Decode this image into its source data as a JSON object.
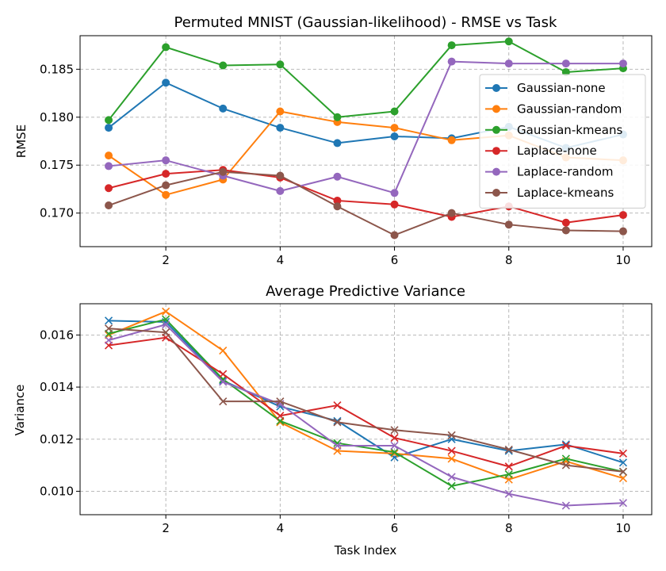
{
  "chart_data": [
    {
      "type": "line",
      "title": "Permuted MNIST (Gaussian-likelihood) - RMSE vs Task",
      "xlabel": "",
      "ylabel": "RMSE",
      "x": [
        1,
        2,
        3,
        4,
        5,
        6,
        7,
        8,
        9,
        10
      ],
      "xlim": [
        0.5,
        10.5
      ],
      "ylim": [
        0.1665,
        0.1885
      ],
      "xticks": [
        2,
        4,
        6,
        8,
        10
      ],
      "xtick_labels": [
        "2",
        "4",
        "6",
        "8",
        "10"
      ],
      "yticks": [
        0.17,
        0.175,
        0.18,
        0.185
      ],
      "ytick_labels": [
        "0.170",
        "0.175",
        "0.180",
        "0.185"
      ],
      "grid": true,
      "marker": "circle",
      "legend_position": "right",
      "series": [
        {
          "name": "Gaussian-none",
          "color": "#1f77b4",
          "values": [
            0.1789,
            0.1836,
            0.1809,
            0.1789,
            0.1773,
            0.178,
            0.1778,
            0.179,
            0.1768,
            0.1782
          ]
        },
        {
          "name": "Gaussian-random",
          "color": "#ff7f0e",
          "values": [
            0.176,
            0.1719,
            0.1735,
            0.1806,
            0.1795,
            0.1789,
            0.1776,
            0.1781,
            0.1758,
            0.1755
          ]
        },
        {
          "name": "Gaussian-kmeans",
          "color": "#2ca02c",
          "values": [
            0.1797,
            0.1873,
            0.1854,
            0.1855,
            0.18,
            0.1806,
            0.1875,
            0.1879,
            0.1847,
            0.1851
          ]
        },
        {
          "name": "Laplace-none",
          "color": "#d62728",
          "values": [
            0.1726,
            0.1741,
            0.1745,
            0.1737,
            0.1713,
            0.1709,
            0.1696,
            0.1707,
            0.169,
            0.1698
          ]
        },
        {
          "name": "Laplace-random",
          "color": "#9467bd",
          "values": [
            0.1749,
            0.1755,
            0.1739,
            0.1723,
            0.1738,
            0.1721,
            0.1858,
            0.1856,
            0.1856,
            0.1856
          ]
        },
        {
          "name": "Laplace-kmeans",
          "color": "#8c564b",
          "values": [
            0.1708,
            0.1729,
            0.1743,
            0.1739,
            0.1707,
            0.1677,
            0.17,
            0.1688,
            0.1682,
            0.1681
          ]
        }
      ]
    },
    {
      "type": "line",
      "title": "Average Predictive Variance",
      "xlabel": "Task Index",
      "ylabel": "Variance",
      "x": [
        1,
        2,
        3,
        4,
        5,
        6,
        7,
        8,
        9,
        10
      ],
      "xlim": [
        0.5,
        10.5
      ],
      "ylim": [
        0.0091,
        0.0172
      ],
      "xticks": [
        2,
        4,
        6,
        8,
        10
      ],
      "xtick_labels": [
        "2",
        "4",
        "6",
        "8",
        "10"
      ],
      "yticks": [
        0.01,
        0.012,
        0.014,
        0.016
      ],
      "ytick_labels": [
        "0.010",
        "0.012",
        "0.014",
        "0.016"
      ],
      "grid": true,
      "marker": "x",
      "series": [
        {
          "color": "#1f77b4",
          "values": [
            0.01655,
            0.0165,
            0.01425,
            0.01325,
            0.0127,
            0.0113,
            0.012,
            0.01155,
            0.0118,
            0.0111
          ]
        },
        {
          "color": "#ff7f0e",
          "values": [
            0.016,
            0.0169,
            0.0154,
            0.01265,
            0.01155,
            0.01145,
            0.01125,
            0.01045,
            0.01115,
            0.0105
          ]
        },
        {
          "color": "#2ca02c",
          "values": [
            0.01605,
            0.0166,
            0.0143,
            0.0127,
            0.01185,
            0.0115,
            0.0102,
            0.01065,
            0.01125,
            0.01075
          ]
        },
        {
          "color": "#d62728",
          "values": [
            0.0156,
            0.0159,
            0.0145,
            0.0129,
            0.0133,
            0.01205,
            0.01155,
            0.01095,
            0.01175,
            0.01145
          ]
        },
        {
          "color": "#9467bd",
          "values": [
            0.0158,
            0.0164,
            0.0142,
            0.01335,
            0.01175,
            0.01175,
            0.01055,
            0.0099,
            0.00945,
            0.00955
          ]
        },
        {
          "color": "#8c564b",
          "values": [
            0.01625,
            0.0161,
            0.01345,
            0.01345,
            0.01265,
            0.01235,
            0.01215,
            0.0116,
            0.011,
            0.01075
          ]
        }
      ]
    }
  ]
}
